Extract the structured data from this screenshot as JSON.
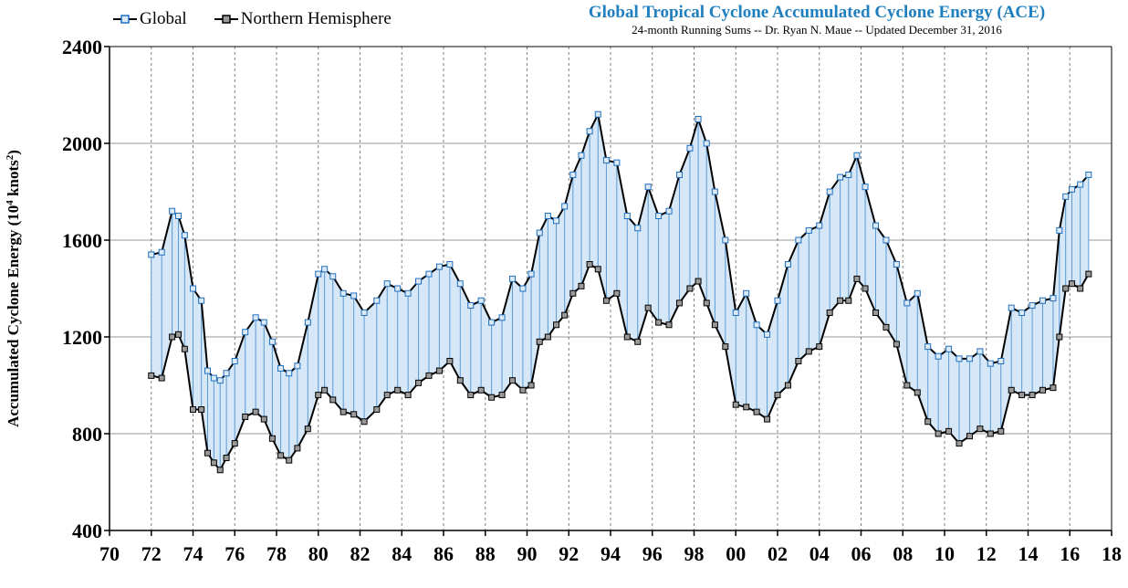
{
  "chart_data": {
    "type": "line",
    "title": "Global Tropical Cyclone Accumulated Cyclone Energy (ACE)",
    "subtitle": "24-month Running Sums -- Dr. Ryan N. Maue -- Updated December 31, 2016",
    "ylabel_main": "Accumulated Cyclone Energy (10",
    "ylabel_sup": "4",
    "ylabel_end": " knots",
    "ylabel_sup2": "2",
    "ylabel_close": ")",
    "xlim": [
      70,
      118
    ],
    "ylim": [
      400,
      2400
    ],
    "x_tick_labels": [
      "70",
      "72",
      "74",
      "76",
      "78",
      "80",
      "82",
      "84",
      "86",
      "88",
      "90",
      "92",
      "94",
      "96",
      "98",
      "00",
      "02",
      "04",
      "06",
      "08",
      "10",
      "12",
      "14",
      "16",
      "18"
    ],
    "y_tick_values": [
      400,
      800,
      1200,
      1600,
      2000,
      2400
    ],
    "y_tick_labels": [
      "400",
      "800",
      "1200",
      "1600",
      "2000",
      "2400"
    ],
    "grid": true,
    "legend_position": "top-left",
    "colors": {
      "global": "#1f6fbf",
      "nh": "#000000",
      "fill": "#d6e7f7",
      "grid": "#999999"
    },
    "series": [
      {
        "name": "Global",
        "x": [
          72.0,
          72.5,
          73.0,
          73.3,
          73.6,
          74.0,
          74.4,
          74.7,
          75.0,
          75.3,
          75.6,
          76.0,
          76.5,
          77.0,
          77.4,
          77.8,
          78.2,
          78.6,
          79.0,
          79.5,
          80.0,
          80.3,
          80.7,
          81.2,
          81.7,
          82.2,
          82.8,
          83.3,
          83.8,
          84.3,
          84.8,
          85.3,
          85.8,
          86.3,
          86.8,
          87.3,
          87.8,
          88.3,
          88.8,
          89.3,
          89.8,
          90.2,
          90.6,
          91.0,
          91.4,
          91.8,
          92.2,
          92.6,
          93.0,
          93.4,
          93.8,
          94.3,
          94.8,
          95.3,
          95.8,
          96.3,
          96.8,
          97.3,
          97.8,
          98.2,
          98.6,
          99.0,
          99.5,
          100.0,
          100.5,
          101.0,
          101.5,
          102.0,
          102.5,
          103.0,
          103.5,
          104.0,
          104.5,
          105.0,
          105.4,
          105.8,
          106.2,
          106.7,
          107.2,
          107.7,
          108.2,
          108.7,
          109.2,
          109.7,
          110.2,
          110.7,
          111.2,
          111.7,
          112.2,
          112.7,
          113.2,
          113.7,
          114.2,
          114.7,
          115.2,
          115.5,
          115.8,
          116.1,
          116.5,
          116.9
        ],
        "values": [
          1540,
          1550,
          1720,
          1700,
          1620,
          1400,
          1350,
          1060,
          1030,
          1020,
          1050,
          1100,
          1220,
          1280,
          1260,
          1180,
          1070,
          1050,
          1080,
          1260,
          1460,
          1480,
          1450,
          1380,
          1370,
          1300,
          1350,
          1420,
          1400,
          1380,
          1430,
          1460,
          1490,
          1500,
          1420,
          1330,
          1350,
          1260,
          1280,
          1440,
          1400,
          1460,
          1630,
          1700,
          1680,
          1740,
          1870,
          1950,
          2050,
          2120,
          1930,
          1920,
          1700,
          1650,
          1820,
          1700,
          1720,
          1870,
          1980,
          2100,
          2000,
          1800,
          1600,
          1300,
          1380,
          1250,
          1210,
          1350,
          1500,
          1600,
          1640,
          1660,
          1800,
          1860,
          1870,
          1950,
          1820,
          1660,
          1600,
          1500,
          1340,
          1380,
          1160,
          1120,
          1150,
          1110,
          1110,
          1140,
          1090,
          1100,
          1320,
          1300,
          1330,
          1350,
          1360,
          1640,
          1780,
          1810,
          1830,
          1870
        ]
      },
      {
        "name": "Northern Hemisphere",
        "x": [
          72.0,
          72.5,
          73.0,
          73.3,
          73.6,
          74.0,
          74.4,
          74.7,
          75.0,
          75.3,
          75.6,
          76.0,
          76.5,
          77.0,
          77.4,
          77.8,
          78.2,
          78.6,
          79.0,
          79.5,
          80.0,
          80.3,
          80.7,
          81.2,
          81.7,
          82.2,
          82.8,
          83.3,
          83.8,
          84.3,
          84.8,
          85.3,
          85.8,
          86.3,
          86.8,
          87.3,
          87.8,
          88.3,
          88.8,
          89.3,
          89.8,
          90.2,
          90.6,
          91.0,
          91.4,
          91.8,
          92.2,
          92.6,
          93.0,
          93.4,
          93.8,
          94.3,
          94.8,
          95.3,
          95.8,
          96.3,
          96.8,
          97.3,
          97.8,
          98.2,
          98.6,
          99.0,
          99.5,
          100.0,
          100.5,
          101.0,
          101.5,
          102.0,
          102.5,
          103.0,
          103.5,
          104.0,
          104.5,
          105.0,
          105.4,
          105.8,
          106.2,
          106.7,
          107.2,
          107.7,
          108.2,
          108.7,
          109.2,
          109.7,
          110.2,
          110.7,
          111.2,
          111.7,
          112.2,
          112.7,
          113.2,
          113.7,
          114.2,
          114.7,
          115.2,
          115.5,
          115.8,
          116.1,
          116.5,
          116.9
        ],
        "values": [
          1040,
          1030,
          1200,
          1210,
          1150,
          900,
          900,
          720,
          680,
          650,
          700,
          760,
          870,
          890,
          860,
          780,
          710,
          690,
          740,
          820,
          960,
          980,
          940,
          890,
          880,
          850,
          900,
          960,
          980,
          960,
          1010,
          1040,
          1060,
          1100,
          1020,
          960,
          980,
          950,
          960,
          1020,
          980,
          1000,
          1180,
          1200,
          1250,
          1290,
          1380,
          1410,
          1500,
          1480,
          1350,
          1380,
          1200,
          1180,
          1320,
          1260,
          1250,
          1340,
          1400,
          1430,
          1340,
          1250,
          1160,
          920,
          910,
          890,
          860,
          960,
          1000,
          1100,
          1140,
          1160,
          1300,
          1350,
          1350,
          1440,
          1400,
          1300,
          1240,
          1170,
          1000,
          970,
          850,
          800,
          810,
          760,
          790,
          820,
          800,
          810,
          980,
          960,
          960,
          980,
          990,
          1200,
          1400,
          1420,
          1400,
          1460
        ]
      }
    ]
  }
}
